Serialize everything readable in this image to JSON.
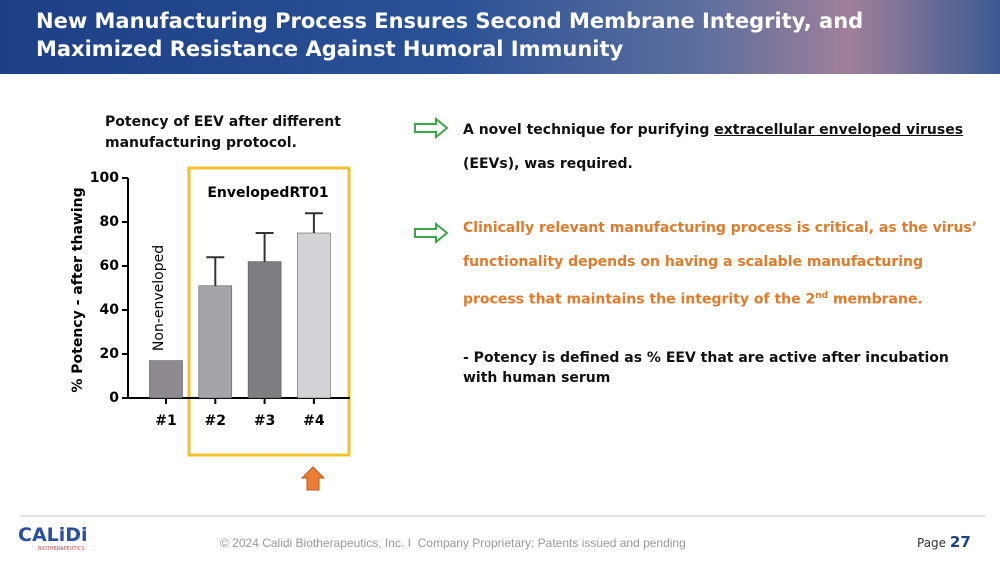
{
  "header": {
    "title_lines": [
      "New Manufacturing Process Ensures Second Membrane Integrity, and",
      "Maximized Resistance Against Humoral Immunity"
    ]
  },
  "chart_data": {
    "type": "bar",
    "title": "Potency of EEV after different manufacturing protocol.",
    "y_label": "% Potency - after thawing",
    "categories": [
      "#1",
      "#2",
      "#3",
      "#4"
    ],
    "values": [
      17,
      51,
      62,
      75
    ],
    "errors": [
      null,
      13,
      13,
      9
    ],
    "colors": [
      "#8c8a8f",
      "#a5a4a9",
      "#7e7d80",
      "#d3d3d5"
    ],
    "ylim": [
      0,
      100
    ],
    "yticks": [
      0,
      20,
      40,
      60,
      80,
      100
    ],
    "grid": false,
    "annotations": [
      "EnvelopedRT01",
      "Non-enveloped"
    ]
  },
  "bullets": [
    {
      "parts": [
        "A novel technique for purifying ",
        "extracellular enveloped viruses",
        " (EEVs), was required."
      ]
    },
    {
      "parts": [
        "Clinically relevant manufacturing process is critical, as the virus’ functionality depends on having a scalable manufacturing process that maintains the integrity of the 2",
        "nd",
        " membrane."
      ]
    }
  ],
  "note": "- Potency is defined as % EEV that are active after incubation with human serum",
  "footer": {
    "logo": "CALiDi",
    "logo_sub": "BIOTHERAPEUTICS",
    "copyright": "© 2024 Calidi Biotherapeutics, Inc. I  Company Proprietary; Patents issued and pending",
    "page_label": "Page",
    "page_number": "27"
  }
}
